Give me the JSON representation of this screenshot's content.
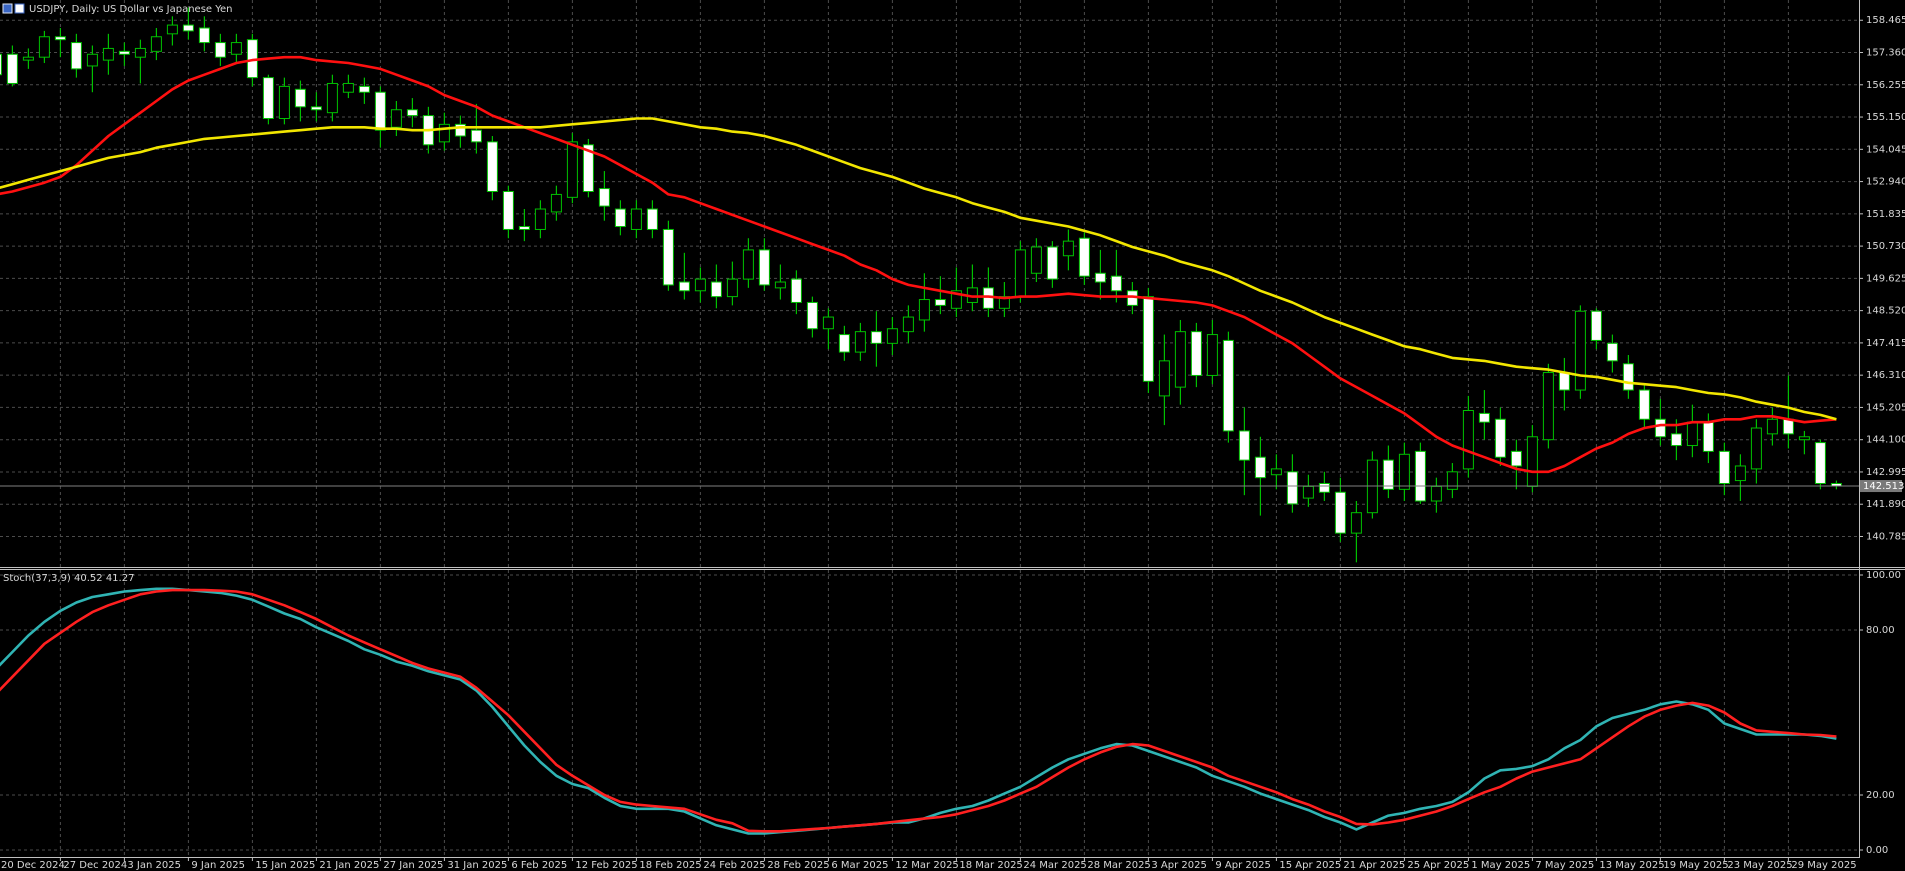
{
  "chart_data": [
    {
      "type": "candlestick",
      "title": "USDJPY, Daily: US Dollar vs Japanese Yen",
      "categories": [
        "20 Dec 2024",
        null,
        null,
        null,
        "27 Dec 2024",
        null,
        null,
        null,
        "3 Jan 2025",
        null,
        null,
        null,
        "9 Jan 2025",
        null,
        null,
        null,
        "15 Jan 2025",
        null,
        null,
        null,
        "21 Jan 2025",
        null,
        null,
        null,
        "27 Jan 2025",
        null,
        null,
        null,
        "31 Jan 2025",
        null,
        null,
        null,
        "6 Feb 2025",
        null,
        null,
        null,
        "12 Feb 2025",
        null,
        null,
        null,
        "18 Feb 2025",
        null,
        null,
        null,
        "24 Feb 2025",
        null,
        null,
        null,
        "28 Feb 2025",
        null,
        null,
        null,
        "6 Mar 2025",
        null,
        null,
        null,
        "12 Mar 2025",
        null,
        null,
        null,
        "18 Mar 2025",
        null,
        null,
        null,
        "24 Mar 2025",
        null,
        null,
        null,
        "28 Mar 2025",
        null,
        null,
        null,
        "3 Apr 2025",
        null,
        null,
        null,
        "9 Apr 2025",
        null,
        null,
        null,
        "15 Apr 2025",
        null,
        null,
        null,
        "21 Apr 2025",
        null,
        null,
        null,
        "25 Apr 2025",
        null,
        null,
        null,
        "1 May 2025",
        null,
        null,
        null,
        "7 May 2025",
        null,
        null,
        null,
        "13 May 2025",
        null,
        null,
        null,
        "19 May 2025",
        null,
        null,
        null,
        "23 May 2025",
        null,
        null,
        null,
        "29 May 2025",
        null,
        null,
        null
      ],
      "open": [
        157.3,
        157.3,
        157.1,
        157.2,
        157.9,
        157.7,
        156.9,
        157.1,
        157.4,
        157.2,
        157.4,
        158.0,
        158.3,
        158.2,
        157.7,
        157.3,
        157.8,
        156.5,
        155.1,
        156.1,
        155.5,
        155.3,
        156.0,
        156.2,
        156.0,
        154.8,
        155.4,
        155.2,
        154.3,
        154.9,
        154.7,
        154.3,
        152.6,
        151.4,
        151.3,
        151.9,
        152.4,
        154.2,
        152.7,
        152.0,
        151.3,
        152.0,
        151.3,
        149.5,
        149.2,
        149.5,
        149.0,
        149.6,
        150.6,
        149.3,
        149.6,
        148.8,
        147.9,
        147.7,
        147.1,
        147.8,
        147.4,
        147.8,
        148.2,
        148.9,
        148.6,
        148.8,
        149.3,
        148.6,
        149.0,
        149.8,
        150.7,
        150.4,
        151.0,
        149.8,
        149.7,
        149.2,
        149.0,
        145.6,
        145.9,
        147.8,
        146.3,
        147.5,
        144.4,
        143.5,
        142.9,
        143.0,
        142.1,
        142.6,
        142.3,
        140.9,
        141.6,
        143.4,
        142.4,
        143.7,
        142.0,
        142.4,
        143.1,
        145.0,
        144.8,
        143.7,
        142.5,
        144.1,
        146.4,
        145.8,
        148.5,
        147.4,
        146.7,
        145.8,
        144.8,
        144.3,
        143.9,
        144.7,
        143.7,
        142.7,
        143.1,
        144.3,
        144.8,
        144.1,
        144.0,
        142.6
      ],
      "high": [
        157.6,
        157.6,
        157.5,
        158.1,
        158.2,
        158.0,
        157.6,
        158.0,
        157.7,
        157.8,
        158.2,
        158.6,
        158.9,
        158.6,
        158.0,
        158.0,
        158.0,
        156.6,
        156.5,
        156.4,
        156.0,
        156.6,
        156.6,
        156.5,
        156.2,
        155.7,
        155.8,
        155.5,
        155.3,
        155.2,
        155.6,
        154.5,
        152.8,
        152.0,
        152.3,
        152.8,
        154.6,
        154.4,
        153.3,
        152.3,
        152.3,
        152.3,
        151.6,
        150.5,
        150.0,
        150.1,
        150.2,
        151.0,
        151.0,
        150.1,
        149.9,
        149.0,
        148.6,
        148.0,
        148.1,
        148.5,
        148.3,
        148.7,
        149.8,
        149.7,
        150.0,
        150.1,
        150.0,
        149.5,
        150.9,
        151.0,
        150.9,
        151.3,
        151.2,
        150.6,
        150.6,
        149.5,
        149.3,
        147.7,
        148.2,
        148.1,
        148.2,
        147.8,
        145.2,
        144.2,
        143.6,
        143.6,
        142.9,
        143.0,
        142.8,
        142.0,
        143.7,
        143.9,
        144.0,
        144.0,
        142.8,
        143.3,
        145.6,
        145.8,
        145.2,
        144.1,
        144.6,
        146.7,
        146.9,
        148.7,
        148.6,
        147.7,
        147.0,
        146.0,
        145.5,
        144.8,
        145.3,
        145.0,
        144.0,
        143.6,
        144.8,
        145.2,
        146.3,
        144.4,
        144.1,
        142.7
      ],
      "low": [
        156.4,
        156.2,
        156.8,
        157.0,
        157.2,
        156.5,
        156.0,
        156.6,
        156.9,
        156.3,
        157.1,
        157.6,
        157.8,
        157.4,
        156.9,
        157.0,
        156.2,
        154.9,
        154.9,
        155.0,
        155.0,
        155.0,
        155.8,
        155.6,
        154.1,
        154.5,
        154.8,
        153.9,
        154.0,
        154.1,
        153.9,
        152.3,
        151.0,
        150.9,
        151.0,
        151.6,
        152.2,
        152.4,
        151.6,
        151.1,
        151.0,
        151.0,
        149.2,
        148.9,
        148.8,
        148.6,
        148.7,
        149.3,
        149.2,
        148.9,
        148.4,
        147.6,
        147.2,
        146.8,
        146.8,
        146.6,
        147.0,
        147.4,
        147.8,
        148.4,
        148.3,
        148.5,
        148.3,
        148.3,
        148.8,
        149.5,
        149.3,
        149.9,
        149.4,
        148.9,
        148.8,
        148.4,
        145.7,
        144.6,
        145.3,
        145.9,
        146.0,
        144.0,
        142.2,
        141.5,
        142.4,
        141.6,
        141.8,
        142.0,
        140.6,
        139.9,
        141.4,
        142.1,
        142.0,
        141.9,
        141.6,
        142.1,
        142.8,
        144.1,
        143.2,
        142.4,
        142.3,
        143.8,
        145.1,
        145.5,
        147.2,
        146.4,
        145.5,
        144.5,
        143.9,
        143.4,
        143.5,
        143.3,
        142.2,
        142.0,
        142.6,
        143.9,
        143.8,
        143.6,
        142.4,
        142.4
      ],
      "close": [
        156.6,
        156.3,
        157.2,
        157.9,
        157.8,
        156.8,
        157.3,
        157.5,
        157.3,
        157.5,
        157.9,
        158.3,
        158.1,
        157.7,
        157.2,
        157.7,
        156.5,
        155.1,
        156.2,
        155.5,
        155.4,
        156.3,
        156.3,
        156.0,
        154.7,
        155.4,
        155.2,
        154.2,
        154.9,
        154.5,
        154.3,
        152.6,
        151.3,
        151.3,
        152.0,
        152.5,
        154.3,
        152.6,
        152.1,
        151.4,
        152.0,
        151.3,
        149.4,
        149.2,
        149.6,
        149.0,
        149.6,
        150.6,
        149.4,
        149.5,
        148.8,
        147.9,
        148.3,
        147.1,
        147.8,
        147.4,
        147.9,
        148.3,
        148.9,
        148.7,
        149.2,
        149.3,
        148.6,
        149.0,
        150.6,
        150.7,
        149.6,
        150.9,
        149.7,
        149.5,
        149.2,
        148.7,
        146.1,
        146.8,
        147.8,
        146.3,
        147.7,
        144.4,
        143.4,
        142.8,
        143.1,
        141.9,
        142.5,
        142.3,
        140.9,
        141.6,
        143.4,
        142.4,
        143.6,
        142.0,
        142.5,
        143.0,
        145.1,
        144.7,
        143.5,
        143.2,
        144.2,
        146.4,
        145.8,
        148.5,
        147.5,
        146.8,
        145.8,
        144.8,
        144.2,
        143.9,
        144.7,
        143.7,
        142.6,
        143.2,
        144.5,
        144.8,
        144.3,
        144.2,
        142.6,
        142.513
      ],
      "up_color": "#000000",
      "down_color": "#ffffff",
      "wick_color": "#00c000",
      "series": [
        {
          "color": "#ff1010",
          "values": [
            152.5,
            152.6,
            152.75,
            152.9,
            153.1,
            153.5,
            154.0,
            154.5,
            154.9,
            155.3,
            155.7,
            156.1,
            156.4,
            156.6,
            156.8,
            157.0,
            157.1,
            157.15,
            157.2,
            157.2,
            157.1,
            157.05,
            157.0,
            156.9,
            156.8,
            156.6,
            156.4,
            156.2,
            155.9,
            155.7,
            155.5,
            155.2,
            155.0,
            154.8,
            154.6,
            154.4,
            154.2,
            154.0,
            153.8,
            153.5,
            153.2,
            152.9,
            152.5,
            152.4,
            152.2,
            152.0,
            151.8,
            151.6,
            151.4,
            151.2,
            151.0,
            150.8,
            150.6,
            150.4,
            150.1,
            149.9,
            149.6,
            149.4,
            149.3,
            149.2,
            149.1,
            149.0,
            149.0,
            148.95,
            149.0,
            149.0,
            149.05,
            149.1,
            149.05,
            149.0,
            149.0,
            149.0,
            148.95,
            148.9,
            148.85,
            148.8,
            148.7,
            148.5,
            148.3,
            148.0,
            147.7,
            147.4,
            147.0,
            146.6,
            146.2,
            145.9,
            145.6,
            145.3,
            145.0,
            144.6,
            144.2,
            143.9,
            143.7,
            143.5,
            143.3,
            143.1,
            143.0,
            143.0,
            143.2,
            143.5,
            143.8,
            144.0,
            144.3,
            144.5,
            144.6,
            144.6,
            144.7,
            144.7,
            144.8,
            144.8,
            144.9,
            144.9,
            144.8,
            144.7,
            144.75,
            144.8
          ]
        },
        {
          "color": "#f2e600",
          "values": [
            152.7,
            152.85,
            153.0,
            153.15,
            153.3,
            153.45,
            153.6,
            153.75,
            153.85,
            153.95,
            154.1,
            154.2,
            154.3,
            154.4,
            154.45,
            154.5,
            154.55,
            154.6,
            154.65,
            154.7,
            154.75,
            154.8,
            154.8,
            154.8,
            154.75,
            154.75,
            154.7,
            154.7,
            154.75,
            154.8,
            154.8,
            154.8,
            154.8,
            154.8,
            154.8,
            154.85,
            154.9,
            154.95,
            155.0,
            155.05,
            155.1,
            155.1,
            155.0,
            154.9,
            154.8,
            154.75,
            154.65,
            154.6,
            154.5,
            154.35,
            154.2,
            154.0,
            153.8,
            153.6,
            153.4,
            153.25,
            153.1,
            152.9,
            152.7,
            152.55,
            152.4,
            152.2,
            152.05,
            151.9,
            151.7,
            151.6,
            151.5,
            151.4,
            151.25,
            151.1,
            150.9,
            150.7,
            150.55,
            150.4,
            150.2,
            150.05,
            149.9,
            149.7,
            149.45,
            149.2,
            149.0,
            148.8,
            148.55,
            148.3,
            148.1,
            147.9,
            147.7,
            147.5,
            147.3,
            147.2,
            147.05,
            146.9,
            146.85,
            146.8,
            146.7,
            146.6,
            146.55,
            146.5,
            146.4,
            146.3,
            146.25,
            146.15,
            146.05,
            146.0,
            145.95,
            145.9,
            145.8,
            145.7,
            145.65,
            145.55,
            145.4,
            145.3,
            145.2,
            145.05,
            144.95,
            144.8
          ]
        }
      ],
      "current_price": 142.513,
      "ylim": [
        139.74,
        159.09
      ],
      "yticks": [
        158.465,
        {
          "value": 157.36,
          "label": "157.360"
        },
        156.255,
        {
          "value": 155.15,
          "label": "155.150"
        },
        154.045,
        {
          "value": 152.94,
          "label": "152.940"
        },
        151.835,
        {
          "value": 150.73,
          "label": "150.730"
        },
        149.625,
        {
          "value": 148.52,
          "label": "148.520"
        },
        147.415,
        {
          "value": 146.31,
          "label": "146.310"
        },
        145.205,
        {
          "value": 144.1,
          "label": "144.100"
        },
        142.995,
        {
          "value": 141.89,
          "label": "141.890"
        },
        140.785
      ],
      "grid": true
    },
    {
      "type": "line",
      "title": "Stoch(37,3,9) 40.52 41.27",
      "series": [
        {
          "color": "#30b4b4",
          "values": [
            66,
            72,
            78,
            83,
            87,
            90,
            92,
            93,
            94,
            94.5,
            95,
            95,
            94.5,
            94,
            93.5,
            92.5,
            91,
            88.5,
            86,
            84,
            81,
            78.5,
            76,
            73,
            71,
            68.5,
            67,
            65,
            63.5,
            62,
            58,
            52,
            45,
            38,
            32,
            27,
            24,
            22.5,
            19,
            16,
            15,
            15,
            15,
            14,
            11.5,
            9,
            7.5,
            6,
            6,
            6.5,
            7,
            7.5,
            8,
            8.5,
            9,
            9.5,
            10,
            10,
            11.5,
            13.5,
            15,
            16,
            18,
            20.5,
            23,
            26.5,
            30,
            33,
            35,
            37,
            38.5,
            38,
            36,
            34,
            32,
            30,
            27,
            25,
            23,
            20.5,
            18.5,
            16.5,
            14.5,
            12,
            10,
            7.5,
            10,
            12.5,
            13.5,
            15,
            16,
            17.5,
            21,
            26,
            29,
            29.5,
            30.5,
            33,
            37,
            40,
            45,
            48,
            49.5,
            51,
            53,
            54,
            53,
            51,
            46,
            44,
            42,
            42,
            42,
            42,
            41.5,
            40.52
          ]
        },
        {
          "color": "#ff2020",
          "values": [
            57,
            63,
            69,
            75,
            79,
            83,
            86.5,
            89,
            91,
            93,
            94,
            94.5,
            94.5,
            94.5,
            94.3,
            94,
            93,
            91,
            89,
            86.5,
            84,
            81,
            78,
            75.5,
            73,
            70.5,
            68,
            66,
            64.5,
            63,
            59,
            54,
            49,
            43,
            37,
            31,
            27,
            23.5,
            20,
            17.5,
            16.5,
            16,
            15.5,
            15,
            13,
            11,
            9.7,
            7,
            6.8,
            6.8,
            7.2,
            7.6,
            8,
            8.5,
            9,
            9.5,
            10.2,
            10.8,
            11.4,
            12,
            13,
            14.5,
            16,
            18,
            20.5,
            23,
            26.5,
            30,
            33,
            35.5,
            37.5,
            38.5,
            38,
            36,
            34,
            32,
            30,
            27,
            25,
            23,
            21,
            18.5,
            16.5,
            14,
            12,
            9.5,
            9.3,
            10,
            11,
            12.5,
            14,
            16,
            18.5,
            21,
            23,
            26,
            28.5,
            30,
            31.5,
            33,
            37,
            41,
            45,
            48.5,
            51,
            52.5,
            53.5,
            52.5,
            50,
            46,
            43.5,
            43,
            42.5,
            42,
            41.8,
            41.27
          ]
        }
      ],
      "ylim": [
        0,
        100
      ],
      "yticks": [
        {
          "value": 100,
          "label": "100.00"
        },
        {
          "value": 80,
          "label": "80.00"
        },
        {
          "value": 20,
          "label": "20.00"
        },
        {
          "value": 0,
          "label": "0.00"
        }
      ],
      "grid": true
    }
  ]
}
